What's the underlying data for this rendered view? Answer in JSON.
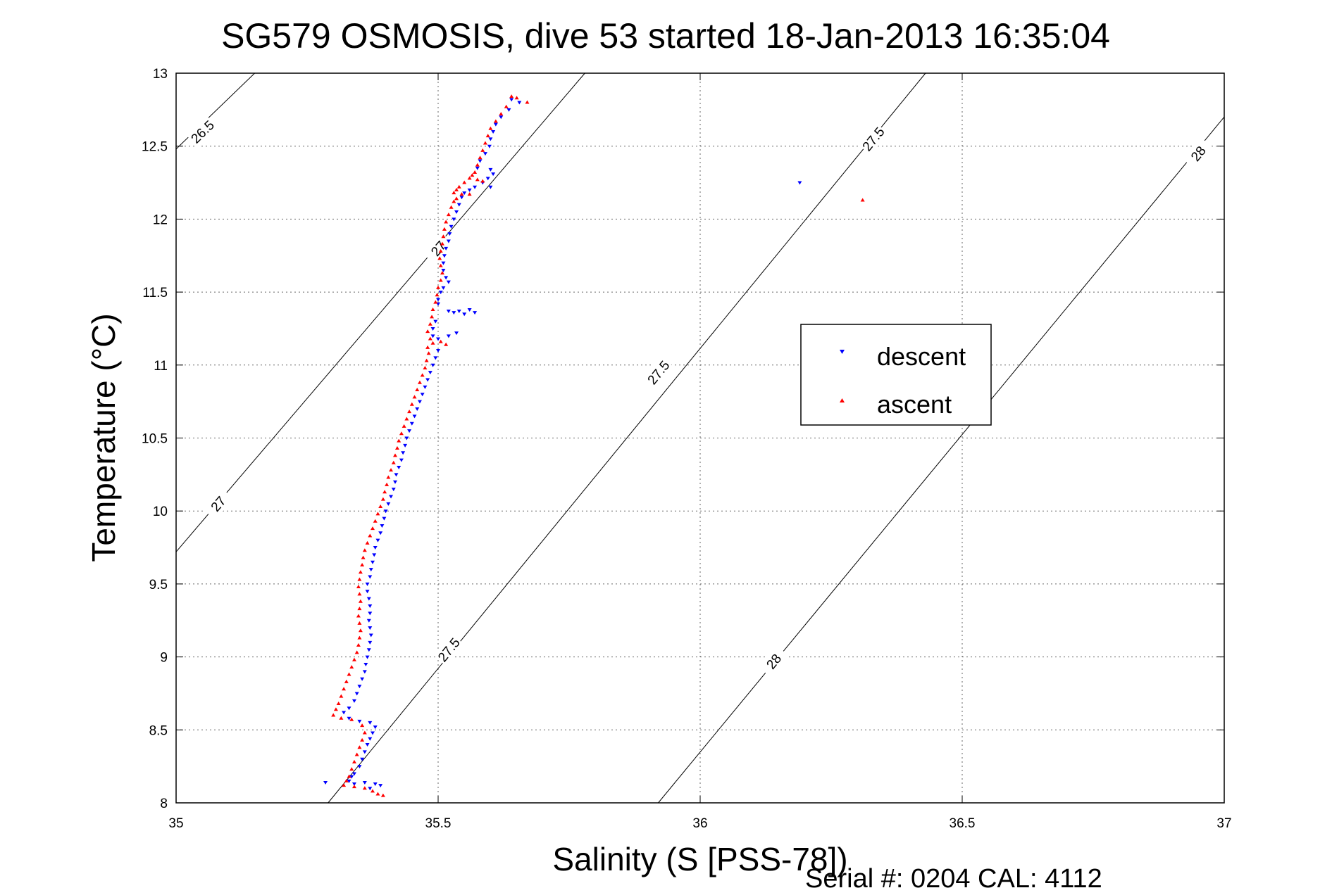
{
  "chart_data": {
    "type": "scatter",
    "title": "SG579 OSMOSIS, dive 53 started 18-Jan-2013 16:35:04",
    "xlabel": "Salinity (S [PSS-78])",
    "ylabel": "Temperature (°C)",
    "xlim": [
      35,
      37
    ],
    "ylim": [
      8,
      13
    ],
    "xticks": [
      "35",
      "35.5",
      "36",
      "36.5",
      "37"
    ],
    "yticks": [
      "8",
      "8.5",
      "9",
      "9.5",
      "10",
      "10.5",
      "11",
      "11.5",
      "12",
      "12.5",
      "13"
    ],
    "grid": true,
    "legend_position": "center-right",
    "footer": "Serial #: 0204  CAL: 4112",
    "isopycnals": [
      {
        "label": "26.5",
        "line": [
          [
            35.0,
            12.48
          ],
          [
            35.15,
            13.0
          ]
        ],
        "labels_at": [
          [
            35.05,
            12.6
          ]
        ]
      },
      {
        "label": "27",
        "line": [
          [
            35.0,
            9.72
          ],
          [
            35.78,
            13.0
          ]
        ],
        "labels_at": [
          [
            35.08,
            10.05
          ],
          [
            35.5,
            11.8
          ]
        ]
      },
      {
        "label": "27.5",
        "line": [
          [
            35.29,
            8.0
          ],
          [
            36.43,
            13.0
          ]
        ],
        "labels_at": [
          [
            35.52,
            9.05
          ],
          [
            35.92,
            10.95
          ],
          [
            36.33,
            12.55
          ]
        ]
      },
      {
        "label": "28",
        "line": [
          [
            35.92,
            8.0
          ],
          [
            37.0,
            12.7
          ]
        ],
        "labels_at": [
          [
            36.14,
            8.97
          ],
          [
            36.95,
            12.45
          ]
        ]
      }
    ],
    "series": [
      {
        "name": "descent",
        "color": "#0000ff",
        "marker": "triangle-down",
        "points": [
          [
            35.64,
            12.82
          ],
          [
            35.655,
            12.8
          ],
          [
            35.635,
            12.75
          ],
          [
            35.62,
            12.7
          ],
          [
            35.61,
            12.65
          ],
          [
            35.605,
            12.6
          ],
          [
            35.6,
            12.55
          ],
          [
            35.598,
            12.5
          ],
          [
            35.59,
            12.45
          ],
          [
            35.58,
            12.4
          ],
          [
            35.575,
            12.35
          ],
          [
            35.6,
            12.34
          ],
          [
            35.605,
            12.31
          ],
          [
            35.595,
            12.28
          ],
          [
            35.585,
            12.25
          ],
          [
            35.57,
            12.22
          ],
          [
            35.6,
            12.22
          ],
          [
            35.56,
            12.2
          ],
          [
            35.55,
            12.18
          ],
          [
            35.545,
            12.15
          ],
          [
            35.54,
            12.1
          ],
          [
            35.535,
            12.05
          ],
          [
            35.53,
            12.0
          ],
          [
            35.525,
            11.95
          ],
          [
            35.522,
            11.9
          ],
          [
            35.52,
            11.85
          ],
          [
            35.515,
            11.8
          ],
          [
            35.512,
            11.75
          ],
          [
            35.51,
            11.7
          ],
          [
            35.51,
            11.65
          ],
          [
            35.515,
            11.6
          ],
          [
            35.52,
            11.57
          ],
          [
            35.51,
            11.53
          ],
          [
            35.505,
            11.5
          ],
          [
            35.5,
            11.45
          ],
          [
            35.5,
            11.42
          ],
          [
            35.52,
            11.37
          ],
          [
            35.54,
            11.37
          ],
          [
            35.56,
            11.38
          ],
          [
            35.57,
            11.36
          ],
          [
            35.55,
            11.35
          ],
          [
            35.53,
            11.36
          ],
          [
            35.495,
            11.3
          ],
          [
            35.49,
            11.25
          ],
          [
            35.49,
            11.2
          ],
          [
            35.5,
            11.18
          ],
          [
            35.52,
            11.2
          ],
          [
            35.535,
            11.22
          ],
          [
            35.5,
            11.1
          ],
          [
            35.495,
            11.05
          ],
          [
            35.49,
            11.0
          ],
          [
            35.485,
            10.95
          ],
          [
            35.48,
            10.9
          ],
          [
            35.475,
            10.85
          ],
          [
            35.47,
            10.8
          ],
          [
            35.465,
            10.75
          ],
          [
            35.46,
            10.7
          ],
          [
            35.455,
            10.65
          ],
          [
            35.45,
            10.6
          ],
          [
            35.445,
            10.55
          ],
          [
            35.44,
            10.5
          ],
          [
            35.437,
            10.45
          ],
          [
            35.433,
            10.4
          ],
          [
            35.43,
            10.35
          ],
          [
            35.425,
            10.3
          ],
          [
            35.42,
            10.25
          ],
          [
            35.418,
            10.2
          ],
          [
            35.415,
            10.15
          ],
          [
            35.41,
            10.1
          ],
          [
            35.405,
            10.05
          ],
          [
            35.4,
            10.0
          ],
          [
            35.397,
            9.95
          ],
          [
            35.393,
            9.9
          ],
          [
            35.39,
            9.85
          ],
          [
            35.385,
            9.8
          ],
          [
            35.38,
            9.75
          ],
          [
            35.378,
            9.7
          ],
          [
            35.375,
            9.65
          ],
          [
            35.372,
            9.6
          ],
          [
            35.37,
            9.55
          ],
          [
            35.365,
            9.5
          ],
          [
            35.365,
            9.45
          ],
          [
            35.368,
            9.4
          ],
          [
            35.37,
            9.35
          ],
          [
            35.37,
            9.3
          ],
          [
            35.368,
            9.25
          ],
          [
            35.37,
            9.2
          ],
          [
            35.372,
            9.15
          ],
          [
            35.37,
            9.1
          ],
          [
            35.368,
            9.05
          ],
          [
            35.365,
            9.0
          ],
          [
            35.362,
            8.95
          ],
          [
            35.36,
            8.9
          ],
          [
            35.355,
            8.85
          ],
          [
            35.35,
            8.8
          ],
          [
            35.345,
            8.75
          ],
          [
            35.34,
            8.7
          ],
          [
            35.33,
            8.65
          ],
          [
            35.32,
            8.62
          ],
          [
            35.33,
            8.58
          ],
          [
            35.35,
            8.56
          ],
          [
            35.37,
            8.55
          ],
          [
            35.38,
            8.52
          ],
          [
            35.375,
            8.48
          ],
          [
            35.37,
            8.44
          ],
          [
            35.365,
            8.4
          ],
          [
            35.36,
            8.35
          ],
          [
            35.355,
            8.3
          ],
          [
            35.35,
            8.25
          ],
          [
            35.34,
            8.2
          ],
          [
            35.335,
            8.18
          ],
          [
            35.33,
            8.15
          ],
          [
            35.34,
            8.13
          ],
          [
            35.36,
            8.14
          ],
          [
            35.38,
            8.13
          ],
          [
            35.39,
            8.12
          ],
          [
            35.37,
            8.1
          ],
          [
            35.285,
            8.14
          ],
          [
            36.19,
            12.25
          ]
        ]
      },
      {
        "name": "ascent",
        "color": "#ff0000",
        "marker": "triangle-up",
        "points": [
          [
            35.64,
            12.84
          ],
          [
            35.65,
            12.83
          ],
          [
            35.67,
            12.8
          ],
          [
            35.63,
            12.77
          ],
          [
            35.62,
            12.72
          ],
          [
            35.61,
            12.67
          ],
          [
            35.6,
            12.62
          ],
          [
            35.595,
            12.57
          ],
          [
            35.59,
            12.52
          ],
          [
            35.585,
            12.47
          ],
          [
            35.58,
            12.42
          ],
          [
            35.575,
            12.37
          ],
          [
            35.57,
            12.32
          ],
          [
            35.565,
            12.3
          ],
          [
            35.56,
            12.28
          ],
          [
            35.575,
            12.27
          ],
          [
            35.585,
            12.26
          ],
          [
            35.55,
            12.25
          ],
          [
            35.54,
            12.22
          ],
          [
            35.535,
            12.2
          ],
          [
            35.53,
            12.18
          ],
          [
            35.545,
            12.17
          ],
          [
            35.56,
            12.17
          ],
          [
            35.535,
            12.14
          ],
          [
            35.53,
            12.12
          ],
          [
            35.525,
            12.08
          ],
          [
            35.52,
            12.03
          ],
          [
            35.515,
            11.98
          ],
          [
            35.512,
            11.93
          ],
          [
            35.51,
            11.88
          ],
          [
            35.508,
            11.83
          ],
          [
            35.505,
            11.78
          ],
          [
            35.503,
            11.73
          ],
          [
            35.505,
            11.68
          ],
          [
            35.508,
            11.63
          ],
          [
            35.505,
            11.58
          ],
          [
            35.5,
            11.53
          ],
          [
            35.498,
            11.48
          ],
          [
            35.495,
            11.43
          ],
          [
            35.49,
            11.38
          ],
          [
            35.488,
            11.33
          ],
          [
            35.485,
            11.28
          ],
          [
            35.48,
            11.23
          ],
          [
            35.485,
            11.18
          ],
          [
            35.49,
            11.15
          ],
          [
            35.505,
            11.16
          ],
          [
            35.515,
            11.14
          ],
          [
            35.48,
            11.12
          ],
          [
            35.482,
            11.08
          ],
          [
            35.478,
            11.03
          ],
          [
            35.475,
            10.98
          ],
          [
            35.47,
            10.93
          ],
          [
            35.465,
            10.88
          ],
          [
            35.46,
            10.83
          ],
          [
            35.455,
            10.78
          ],
          [
            35.45,
            10.73
          ],
          [
            35.445,
            10.68
          ],
          [
            35.44,
            10.63
          ],
          [
            35.435,
            10.58
          ],
          [
            35.43,
            10.53
          ],
          [
            35.425,
            10.48
          ],
          [
            35.422,
            10.43
          ],
          [
            35.418,
            10.38
          ],
          [
            35.415,
            10.33
          ],
          [
            35.41,
            10.28
          ],
          [
            35.405,
            10.23
          ],
          [
            35.402,
            10.18
          ],
          [
            35.398,
            10.13
          ],
          [
            35.395,
            10.08
          ],
          [
            35.39,
            10.03
          ],
          [
            35.385,
            9.98
          ],
          [
            35.38,
            9.93
          ],
          [
            35.375,
            9.88
          ],
          [
            35.37,
            9.83
          ],
          [
            35.365,
            9.78
          ],
          [
            35.36,
            9.73
          ],
          [
            35.357,
            9.68
          ],
          [
            35.355,
            9.63
          ],
          [
            35.352,
            9.58
          ],
          [
            35.35,
            9.53
          ],
          [
            35.348,
            9.48
          ],
          [
            35.35,
            9.43
          ],
          [
            35.352,
            9.38
          ],
          [
            35.35,
            9.33
          ],
          [
            35.348,
            9.28
          ],
          [
            35.35,
            9.23
          ],
          [
            35.352,
            9.18
          ],
          [
            35.35,
            9.13
          ],
          [
            35.348,
            9.08
          ],
          [
            35.345,
            9.03
          ],
          [
            35.34,
            8.98
          ],
          [
            35.335,
            8.93
          ],
          [
            35.33,
            8.88
          ],
          [
            35.325,
            8.83
          ],
          [
            35.32,
            8.78
          ],
          [
            35.315,
            8.73
          ],
          [
            35.31,
            8.68
          ],
          [
            35.305,
            8.64
          ],
          [
            35.3,
            8.6
          ],
          [
            35.315,
            8.58
          ],
          [
            35.335,
            8.57
          ],
          [
            35.355,
            8.53
          ],
          [
            35.36,
            8.48
          ],
          [
            35.355,
            8.43
          ],
          [
            35.35,
            8.38
          ],
          [
            35.345,
            8.33
          ],
          [
            35.34,
            8.28
          ],
          [
            35.335,
            8.23
          ],
          [
            35.33,
            8.18
          ],
          [
            35.325,
            8.15
          ],
          [
            35.32,
            8.12
          ],
          [
            35.34,
            8.11
          ],
          [
            35.36,
            8.1
          ],
          [
            35.375,
            8.08
          ],
          [
            35.385,
            8.06
          ],
          [
            35.395,
            8.05
          ],
          [
            36.31,
            12.13
          ]
        ]
      }
    ]
  }
}
